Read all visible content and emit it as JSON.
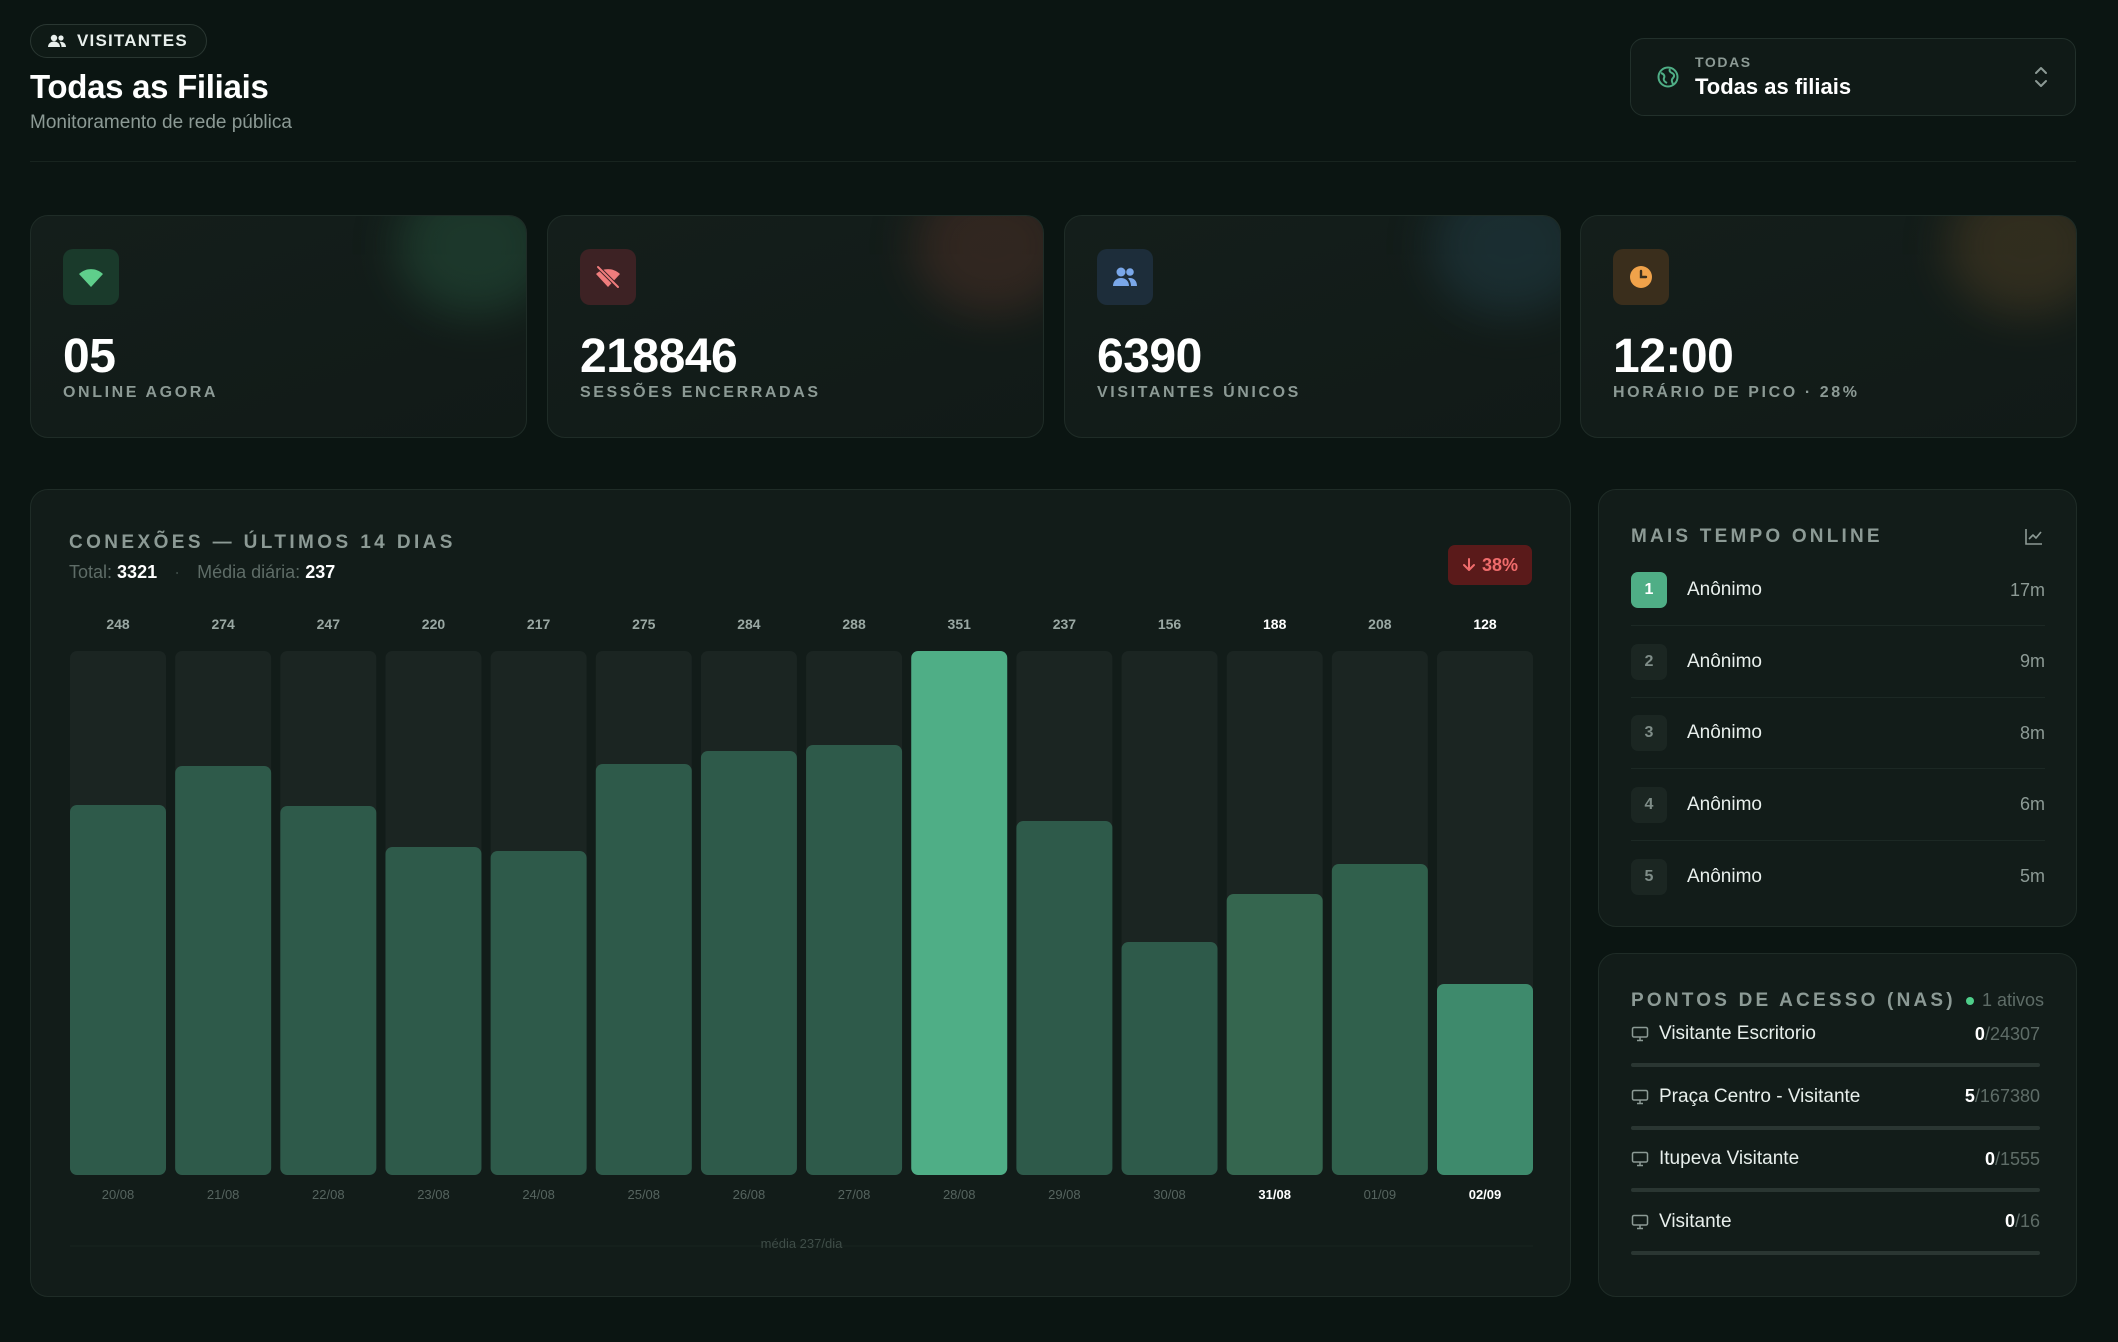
{
  "header": {
    "badge": "VISITANTES",
    "title": "Todas as Filiais",
    "subtitle": "Monitoramento de rede pública",
    "selector_caption": "TODAS",
    "selector_value": "Todas as filiais"
  },
  "kpis": [
    {
      "value": "05",
      "label": "ONLINE AGORA",
      "icon": "wifi-icon",
      "color": "#5fce8b"
    },
    {
      "value": "218846",
      "label": "SESSÕES ENCERRADAS",
      "icon": "wifi-off-icon",
      "color": "#ef7c7c"
    },
    {
      "value": "6390",
      "label": "VISITANTES ÚNICOS",
      "icon": "users-icon",
      "color": "#7aa7e8"
    },
    {
      "value": "12:00",
      "label": "HORÁRIO DE PICO · 28%",
      "icon": "clock-icon",
      "color": "#f0a24a"
    }
  ],
  "connections": {
    "title": "CONEXÕES — ÚLTIMOS 14 DIAS",
    "total_label": "Total:",
    "total": "3321",
    "avg_label": "Média diária:",
    "avg": "237",
    "delta": "38%",
    "mean_line_label": "média 237/dia"
  },
  "chart_data": {
    "type": "bar",
    "categories": [
      "20/08",
      "21/08",
      "22/08",
      "23/08",
      "24/08",
      "25/08",
      "26/08",
      "27/08",
      "28/08",
      "29/08",
      "30/08",
      "31/08",
      "01/09",
      "02/09"
    ],
    "values": [
      248,
      274,
      247,
      220,
      217,
      275,
      284,
      288,
      351,
      237,
      156,
      188,
      208,
      128
    ],
    "ylim": [
      0,
      351
    ],
    "highlight_max": "28/08",
    "highlight_current": "02/09",
    "bold_labels": [
      "31/08",
      "02/09"
    ],
    "colors": {
      "bar": "#2e5a4a",
      "max": "#4fae86",
      "current": "#3e8a6c",
      "track": "#1b2522"
    }
  },
  "top_online": {
    "title": "MAIS TEMPO ONLINE",
    "items": [
      {
        "rank": "1",
        "name": "Anônimo",
        "time": "17m"
      },
      {
        "rank": "2",
        "name": "Anônimo",
        "time": "9m"
      },
      {
        "rank": "3",
        "name": "Anônimo",
        "time": "8m"
      },
      {
        "rank": "4",
        "name": "Anônimo",
        "time": "6m"
      },
      {
        "rank": "5",
        "name": "Anônimo",
        "time": "5m"
      }
    ]
  },
  "nas": {
    "title": "PONTOS DE ACESSO (NAS)",
    "active": "1 ativos",
    "items": [
      {
        "name": "Visitante Escritorio",
        "online": "0",
        "total": "/24307"
      },
      {
        "name": "Praça Centro - Visitante",
        "online": "5",
        "total": "/167380"
      },
      {
        "name": "Itupeva Visitante",
        "online": "0",
        "total": "/1555"
      },
      {
        "name": "Visitante",
        "online": "0",
        "total": "/16"
      }
    ]
  }
}
